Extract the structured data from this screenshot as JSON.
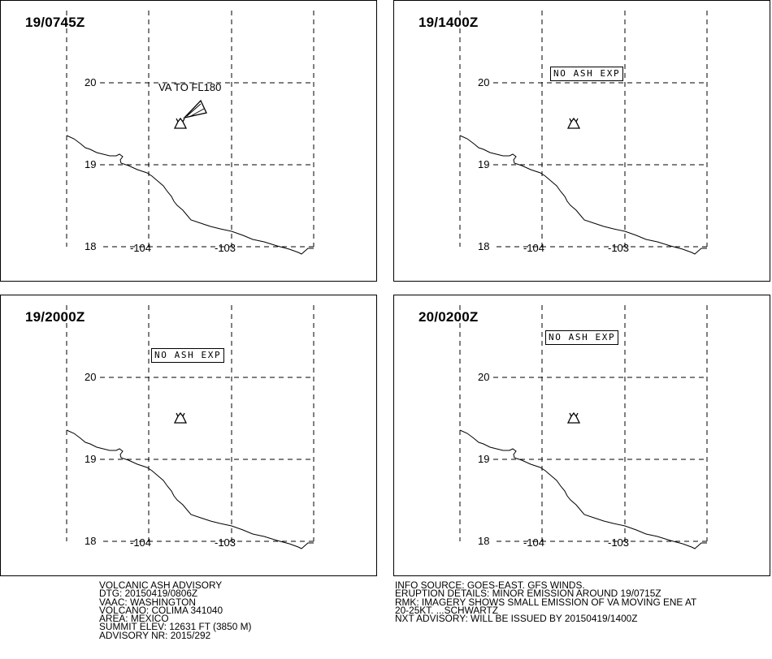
{
  "panels": [
    {
      "time_label": "19/0745Z",
      "annotation": "VA TO FL180"
    },
    {
      "time_label": "19/1400Z",
      "annotation": "NO ASH EXP"
    },
    {
      "time_label": "19/2000Z",
      "annotation": "NO ASH EXP"
    },
    {
      "time_label": "20/0200Z",
      "annotation": "NO ASH EXP"
    }
  ],
  "grid": {
    "lat_labels": [
      "20",
      "19",
      "18"
    ],
    "lon_labels": [
      "-104",
      "-103"
    ]
  },
  "advisory_left": [
    "VOLCANIC ASH ADVISORY",
    "DTG: 20150419/0806Z",
    "VAAC: WASHINGTON",
    "VOLCANO: COLIMA 341040",
    "AREA: MEXICO",
    "SUMMIT ELEV: 12631 FT (3850 M)",
    "ADVISORY NR: 2015/292"
  ],
  "advisory_right": [
    "INFO SOURCE: GOES-EAST. GFS WINDS.",
    "ERUPTION DETAILS: MINOR EMISSION AROUND 19/0715Z",
    "RMK: IMAGERY SHOWS SMALL EMISSION OF VA MOVING ENE AT",
    "20-25KT.   ...SCHWARTZ",
    "NXT ADVISORY: WILL BE ISSUED BY 20150419/1400Z"
  ]
}
